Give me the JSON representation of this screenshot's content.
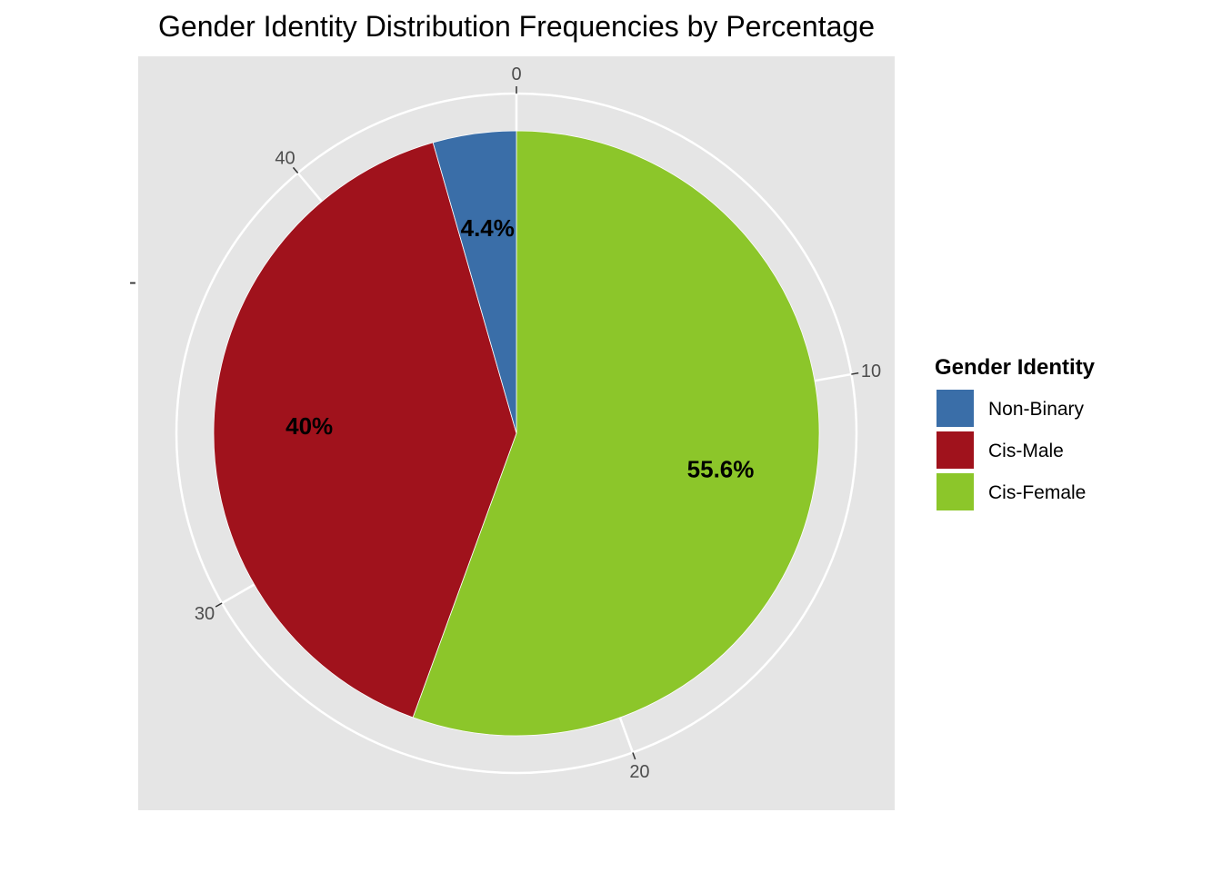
{
  "chart_data": {
    "type": "pie",
    "title": "Gender Identity Distribution Frequencies by Percentage",
    "y_axis_tick_label": "-",
    "theta_ticks": [
      "0",
      "10",
      "20",
      "30",
      "40"
    ],
    "theta_max": 45,
    "categories": [
      "Non-Binary",
      "Cis-Male",
      "Cis-Female"
    ],
    "values": [
      2,
      18,
      25
    ],
    "labels": [
      "4.4%",
      "40%",
      "55.6%"
    ],
    "colors": [
      "#3A6EA8",
      "#A0121C",
      "#8CC62A"
    ],
    "legend": {
      "title": "Gender Identity",
      "position": "right"
    },
    "panel_background": "#E5E5E5",
    "grid": true
  }
}
